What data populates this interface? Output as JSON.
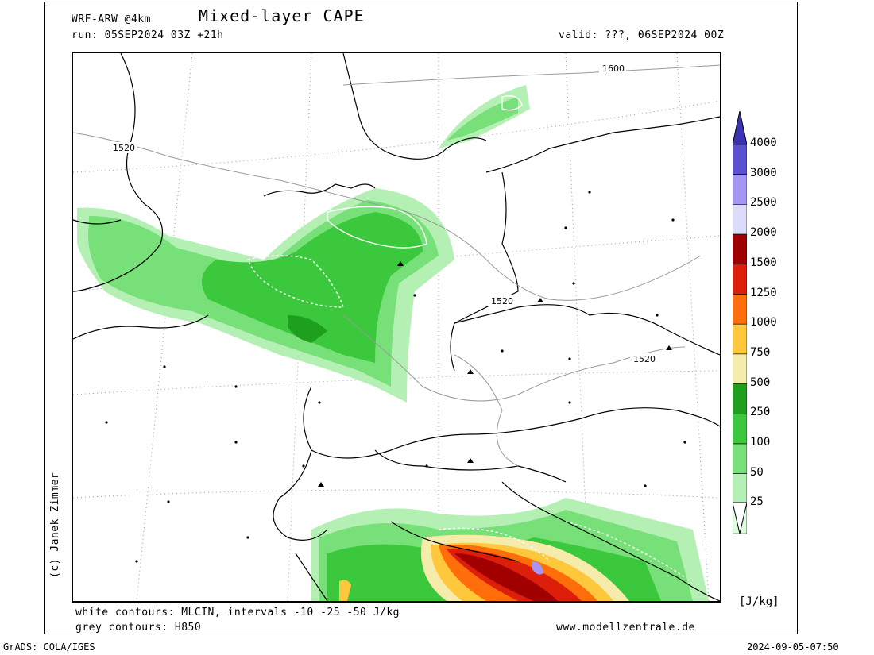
{
  "header": {
    "model": "WRF-ARW @4km",
    "title": "Mixed-layer CAPE",
    "run": "run: 05SEP2024 03Z +21h",
    "valid": "valid: ???, 06SEP2024 00Z"
  },
  "map": {
    "contour_labels": [
      "1600",
      "1520",
      "1520",
      "1520"
    ]
  },
  "credit": "(c) Janek Zimmer",
  "legend": {
    "unit": "[J/kg]",
    "levels": [
      "4000",
      "3000",
      "2500",
      "2000",
      "1500",
      "1250",
      "1000",
      "750",
      "500",
      "250",
      "100",
      "50",
      "25"
    ],
    "colors": {
      "c25": "#dcfcdc",
      "c50": "#b4f0b4",
      "c100": "#78e078",
      "c250": "#3cc83c",
      "c500": "#1ea01e",
      "c750": "#f5ebaa",
      "c1000": "#ffc83c",
      "c1250": "#ff6e0a",
      "c1500": "#dc1e0a",
      "c2000": "#a00000",
      "c2500": "#dcdcfa",
      "c3000": "#a596f5",
      "c4000": "#5a50d2",
      "top": "#3c32b4"
    }
  },
  "notes": {
    "white_contours": "white contours: MLCIN, intervals -10 -25 -50 J/kg",
    "grey_contours": "grey contours: H850",
    "website": "www.modellzentrale.de"
  },
  "footer": {
    "software": "GrADS: COLA/IGES",
    "timestamp": "2024-09-05-07:50"
  }
}
